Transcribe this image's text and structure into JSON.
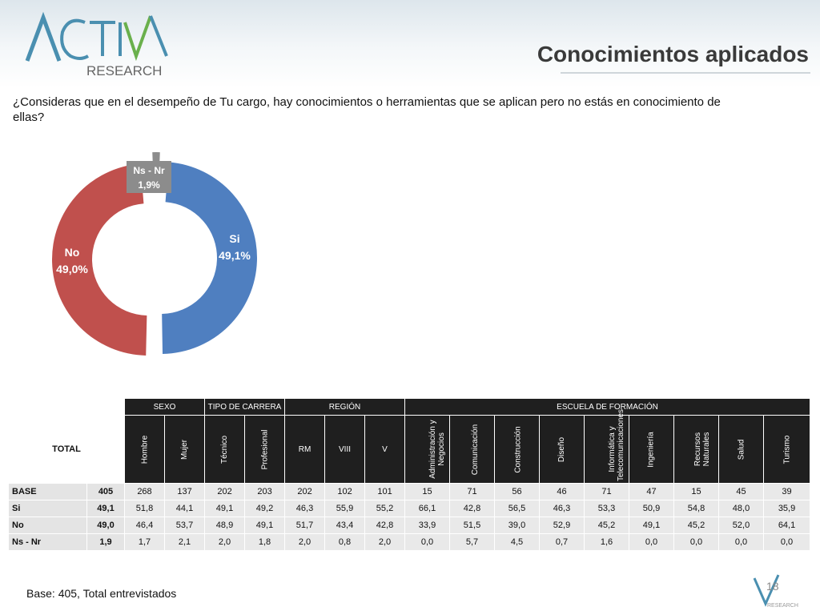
{
  "header": {
    "logo_text_top": "ACTIVA",
    "logo_text_bottom": "RESEARCH",
    "title": "Conocimientos aplicados"
  },
  "question": "¿Consideras que en el desempeño de Tu cargo, hay conocimientos o herramientas que se aplican pero no estás en conocimiento de ellas?",
  "chart_data": {
    "type": "pie",
    "categories": [
      "Si",
      "No",
      "Ns - Nr"
    ],
    "values": [
      49.1,
      49.0,
      1.9
    ],
    "value_labels": [
      "49,1%",
      "49,0%",
      "1,9%"
    ],
    "colors": [
      "#4f7fc0",
      "#c0504d",
      "#8c8c8c"
    ],
    "title": ""
  },
  "table": {
    "total_header": "TOTAL",
    "groups": [
      "SEXO",
      "TIPO DE CARRERA",
      "REGIÓN",
      "ESCUELA DE FORMACIÓN"
    ],
    "sub_sexo": [
      "Hombre",
      "Mujer"
    ],
    "sub_carrera": [
      "Técnico",
      "Profesional"
    ],
    "sub_region": [
      "RM",
      "VIII",
      "V"
    ],
    "sub_escuela": [
      "Administración y Negocios",
      "Comunicación",
      "Construcción",
      "Diseño",
      "Informática y Telecomunicaciones",
      "Ingeniería",
      "Recursos Naturales",
      "Salud",
      "Turismo"
    ],
    "rows": [
      {
        "label": "BASE",
        "values": [
          "405",
          "268",
          "137",
          "202",
          "203",
          "202",
          "102",
          "101",
          "15",
          "71",
          "56",
          "46",
          "71",
          "47",
          "15",
          "45",
          "39"
        ]
      },
      {
        "label": "Si",
        "values": [
          "49,1",
          "51,8",
          "44,1",
          "49,1",
          "49,2",
          "46,3",
          "55,9",
          "55,2",
          "66,1",
          "42,8",
          "56,5",
          "46,3",
          "53,3",
          "50,9",
          "54,8",
          "48,0",
          "35,9"
        ]
      },
      {
        "label": "No",
        "values": [
          "49,0",
          "46,4",
          "53,7",
          "48,9",
          "49,1",
          "51,7",
          "43,4",
          "42,8",
          "33,9",
          "51,5",
          "39,0",
          "52,9",
          "45,2",
          "49,1",
          "45,2",
          "52,0",
          "64,1"
        ]
      },
      {
        "label": "Ns - Nr",
        "values": [
          "1,9",
          "1,7",
          "2,1",
          "2,0",
          "1,8",
          "2,0",
          "0,8",
          "2,0",
          "0,0",
          "5,7",
          "4,5",
          "0,7",
          "1,6",
          "0,0",
          "0,0",
          "0,0",
          "0,0"
        ]
      }
    ]
  },
  "footer": {
    "base_note": "Base: 405, Total entrevistados",
    "page_number": "18",
    "mini_logo_text": "RESEARCH"
  }
}
